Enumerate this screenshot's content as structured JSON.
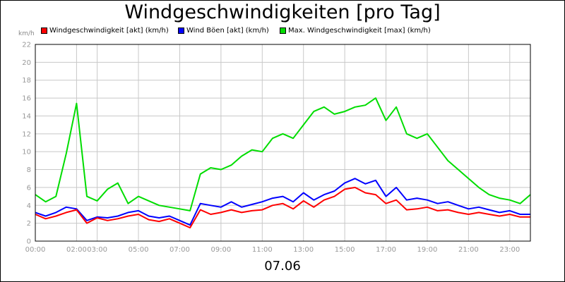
{
  "chart_data": {
    "type": "line",
    "title": "Windgeschwindigkeiten [pro Tag]",
    "unit": "km/h",
    "date": "07.06",
    "ylim": [
      0,
      22
    ],
    "y_ticks": [
      "0",
      "2",
      "4",
      "6",
      "8",
      "10",
      "12",
      "14",
      "16",
      "18",
      "20",
      "22"
    ],
    "x_tick_labels": [
      "00:00",
      "02:00",
      "03:00",
      "05:00",
      "07:00",
      "09:00",
      "11:00",
      "13:00",
      "15:00",
      "17:00",
      "19:00",
      "21:00",
      "23:00"
    ],
    "x_tick_hours": [
      0,
      2,
      3,
      5,
      7,
      9,
      11,
      13,
      15,
      17,
      19,
      21,
      23
    ],
    "xlim_hours": [
      0,
      24
    ],
    "grid": true,
    "legend_position": "top",
    "x": [
      0,
      0.5,
      1,
      1.5,
      2,
      2.5,
      3,
      3.5,
      4,
      4.5,
      5,
      5.5,
      6,
      6.5,
      7,
      7.5,
      8,
      8.5,
      9,
      9.5,
      10,
      10.5,
      11,
      11.5,
      12,
      12.5,
      13,
      13.5,
      14,
      14.5,
      15,
      15.5,
      16,
      16.5,
      17,
      17.5,
      18,
      18.5,
      19,
      19.5,
      20,
      20.5,
      21,
      21.5,
      22,
      22.5,
      23,
      23.5,
      24
    ],
    "series": [
      {
        "name": "Windgeschwindigkeit [akt] (km/h)",
        "color": "#ff0000",
        "values": [
          3.0,
          2.5,
          2.8,
          3.2,
          3.5,
          2.0,
          2.6,
          2.3,
          2.5,
          2.8,
          3.0,
          2.4,
          2.2,
          2.5,
          2.0,
          1.5,
          3.5,
          3.0,
          3.2,
          3.5,
          3.2,
          3.4,
          3.5,
          4.0,
          4.2,
          3.6,
          4.5,
          3.8,
          4.6,
          5.0,
          5.8,
          6.0,
          5.4,
          5.2,
          4.2,
          4.6,
          3.5,
          3.6,
          3.8,
          3.4,
          3.5,
          3.2,
          3.0,
          3.2,
          3.0,
          2.8,
          3.0,
          2.7,
          2.7
        ]
      },
      {
        "name": "Wind Böen [akt] (km/h)",
        "color": "#0000ff",
        "values": [
          3.2,
          2.8,
          3.2,
          3.8,
          3.6,
          2.3,
          2.7,
          2.6,
          2.8,
          3.2,
          3.4,
          2.8,
          2.6,
          2.8,
          2.3,
          1.8,
          4.2,
          4.0,
          3.8,
          4.4,
          3.8,
          4.1,
          4.4,
          4.8,
          5.0,
          4.4,
          5.4,
          4.6,
          5.2,
          5.6,
          6.5,
          7.0,
          6.4,
          6.8,
          5.0,
          6.0,
          4.6,
          4.8,
          4.6,
          4.2,
          4.4,
          4.0,
          3.6,
          3.8,
          3.5,
          3.2,
          3.4,
          3.0,
          3.0
        ]
      },
      {
        "name": "Max. Windgeschwindigkeit [max] (km/h)",
        "color": "#00dd00",
        "values": [
          5.2,
          4.4,
          5.0,
          9.8,
          15.4,
          5.0,
          4.5,
          5.8,
          6.5,
          4.2,
          5.0,
          4.5,
          4.0,
          3.8,
          3.6,
          3.4,
          7.5,
          8.2,
          8.0,
          8.5,
          9.5,
          10.2,
          10.0,
          11.5,
          12.0,
          11.5,
          13.0,
          14.5,
          15.0,
          14.2,
          14.5,
          15.0,
          15.2,
          16.0,
          13.5,
          15.0,
          12.0,
          11.5,
          12.0,
          10.5,
          9.0,
          8.0,
          7.0,
          6.0,
          5.2,
          4.8,
          4.6,
          4.2,
          5.2
        ]
      }
    ]
  }
}
